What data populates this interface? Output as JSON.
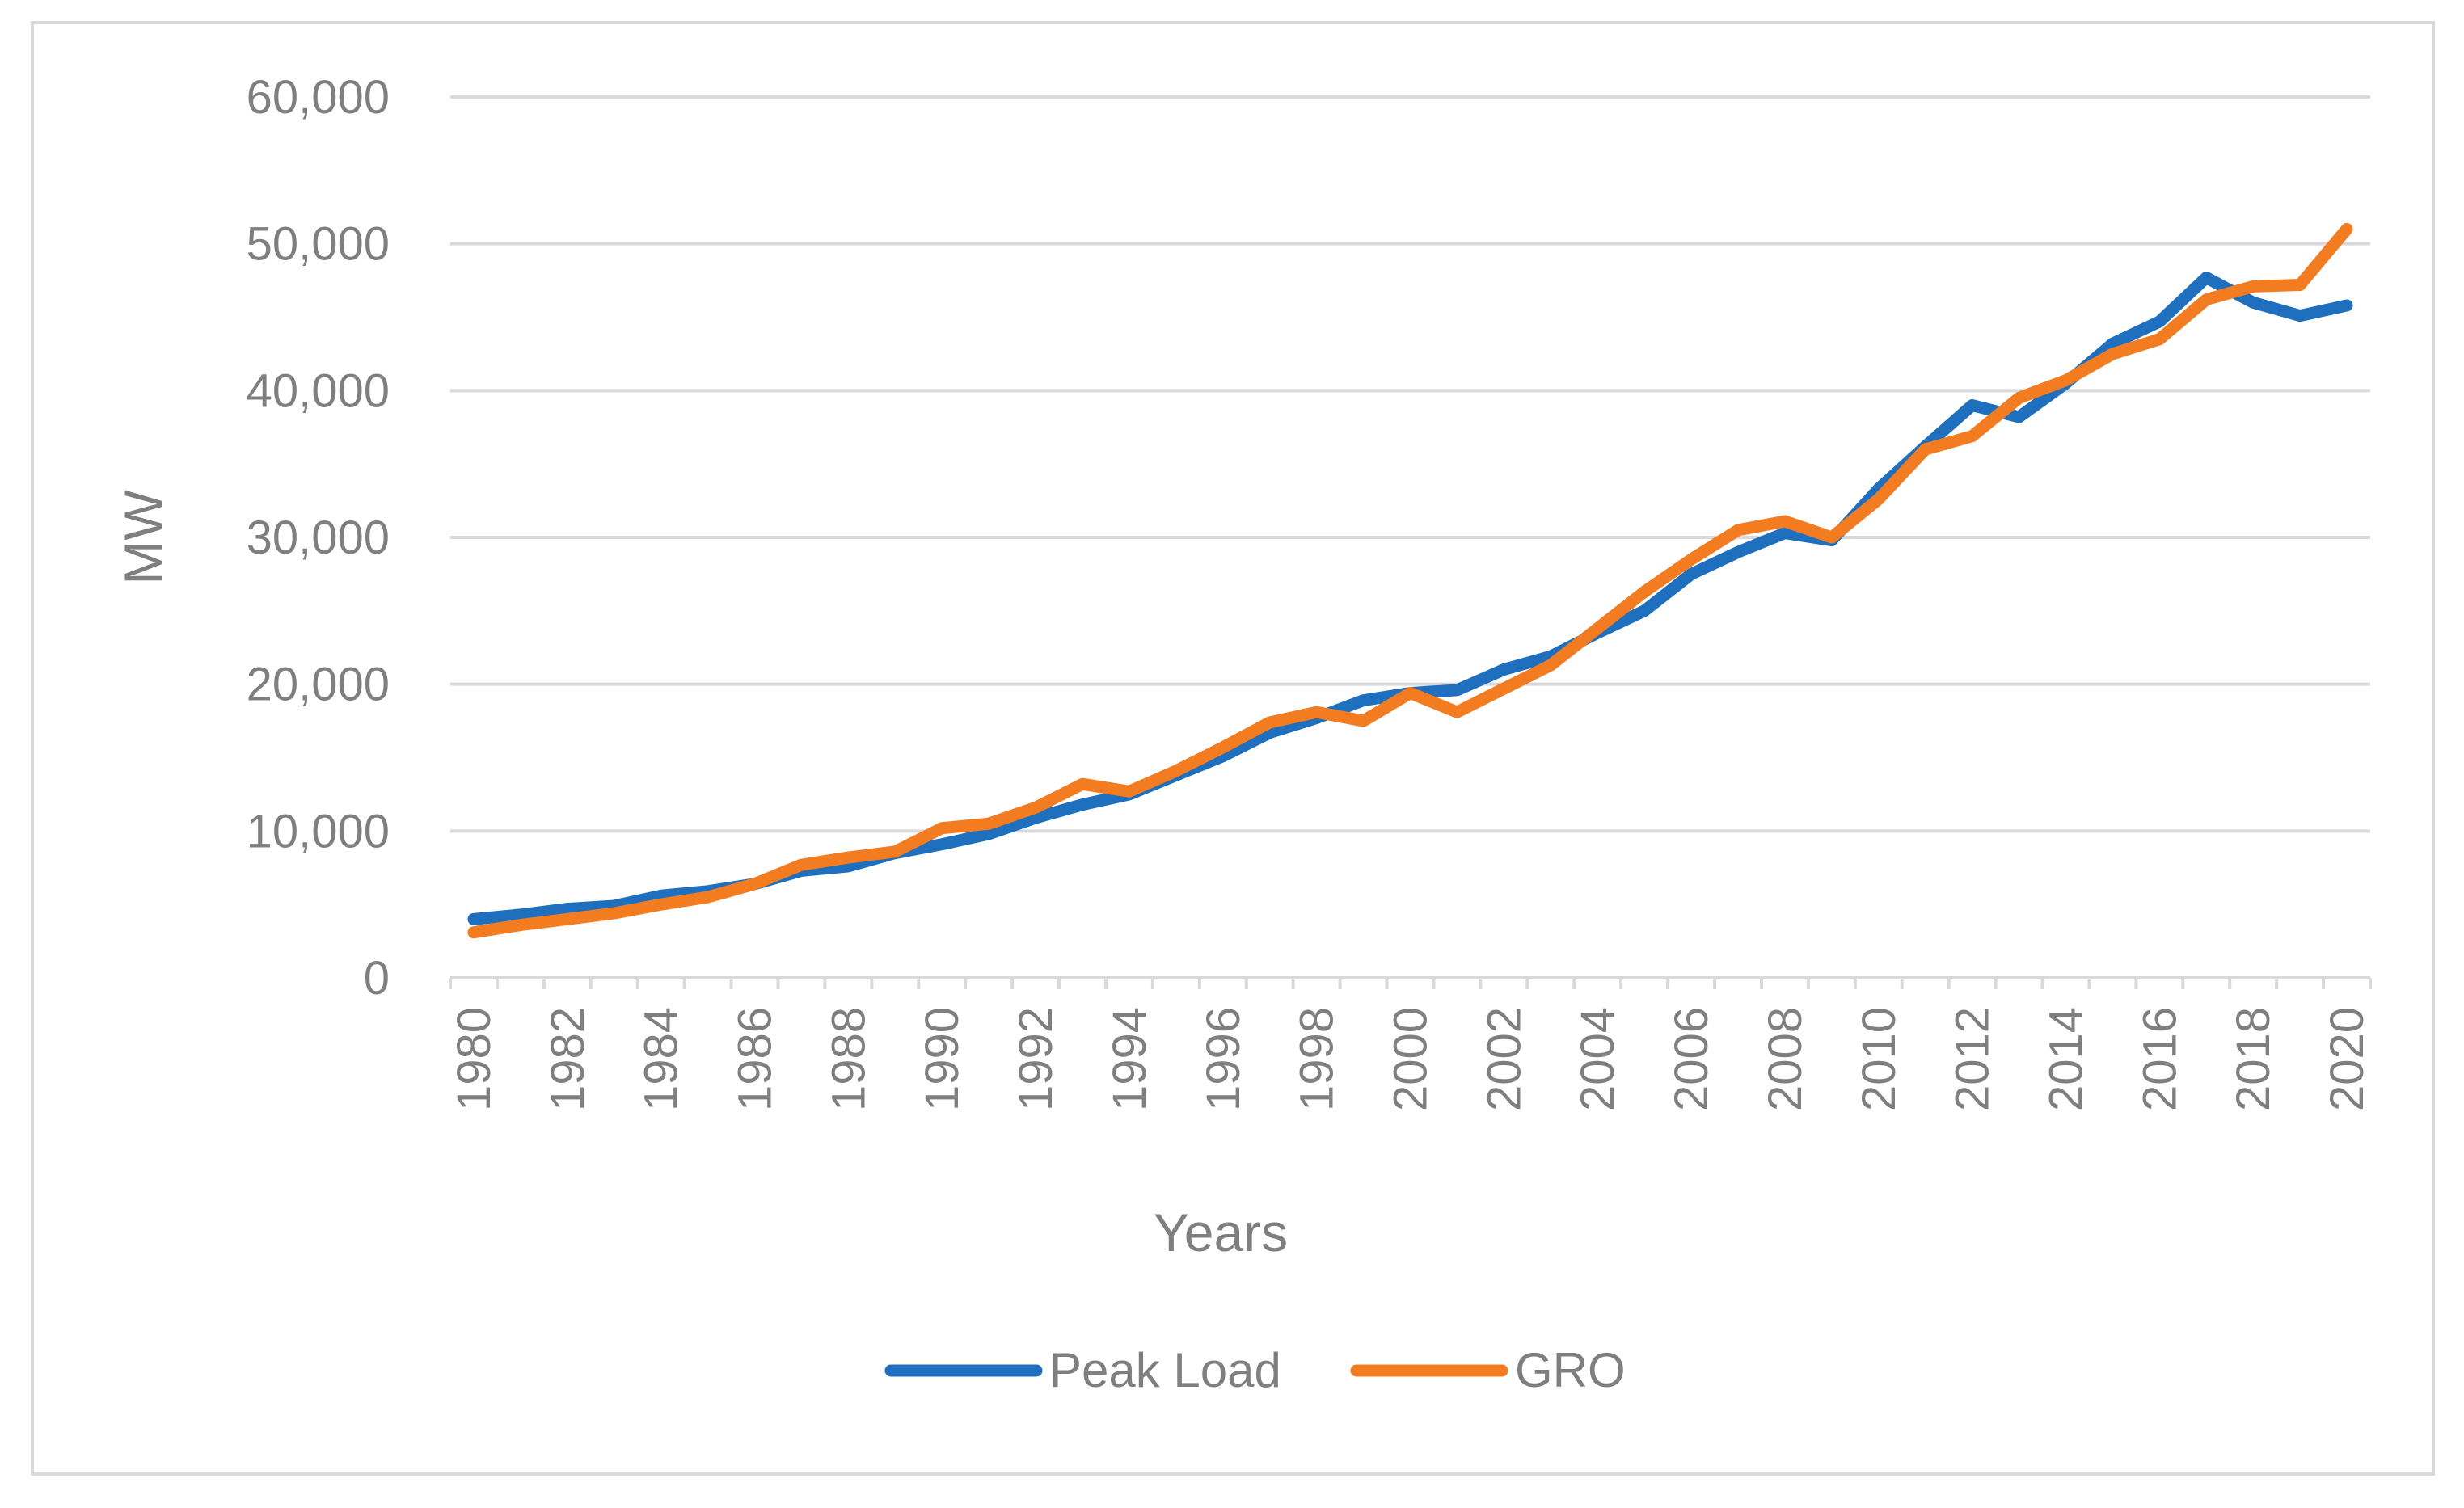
{
  "chart_data": {
    "type": "line",
    "title": "",
    "xlabel": "Years",
    "ylabel": "MW",
    "ylim": [
      0,
      60000
    ],
    "y_ticks": [
      0,
      10000,
      20000,
      30000,
      40000,
      50000,
      60000
    ],
    "y_tick_labels": [
      "0",
      "10,000",
      "20,000",
      "30,000",
      "40,000",
      "50,000",
      "60,000"
    ],
    "x_tick_labels": [
      "1980",
      "1982",
      "1984",
      "1986",
      "1988",
      "1990",
      "1992",
      "1994",
      "1996",
      "1998",
      "2000",
      "2002",
      "2004",
      "2006",
      "2008",
      "2010",
      "2012",
      "2014",
      "2016",
      "2018",
      "2020"
    ],
    "x": [
      1980,
      1981,
      1982,
      1983,
      1984,
      1985,
      1986,
      1987,
      1988,
      1989,
      1990,
      1991,
      1992,
      1993,
      1994,
      1995,
      1996,
      1997,
      1998,
      1999,
      2000,
      2001,
      2002,
      2003,
      2004,
      2005,
      2006,
      2007,
      2008,
      2009,
      2010,
      2011,
      2012,
      2013,
      2014,
      2015,
      2016,
      2017,
      2018,
      2019,
      2020
    ],
    "grid": true,
    "legend_position": "bottom",
    "series": [
      {
        "name": "Peak Load",
        "color": "#1f6fbf",
        "values": [
          4000,
          4300,
          4700,
          4900,
          5600,
          5900,
          6400,
          7300,
          7600,
          8500,
          9100,
          9800,
          10900,
          11800,
          12500,
          13800,
          15100,
          16700,
          17700,
          18900,
          19400,
          19600,
          21000,
          21900,
          23500,
          25000,
          27500,
          29000,
          30300,
          29800,
          33300,
          36200,
          39000,
          38200,
          40500,
          43200,
          44700,
          47700,
          46000,
          45100,
          45800
        ]
      },
      {
        "name": "GRO",
        "color": "#f47c20",
        "values": [
          3100,
          3600,
          4000,
          4400,
          5000,
          5500,
          6400,
          7700,
          8200,
          8600,
          10200,
          10500,
          11600,
          13200,
          12700,
          14100,
          15700,
          17400,
          18100,
          17500,
          19400,
          18100,
          19700,
          21300,
          23800,
          26300,
          28500,
          30500,
          31100,
          30000,
          32600,
          36000,
          36900,
          39500,
          40700,
          42500,
          43500,
          46200,
          47100,
          47200,
          51000
        ]
      }
    ]
  }
}
